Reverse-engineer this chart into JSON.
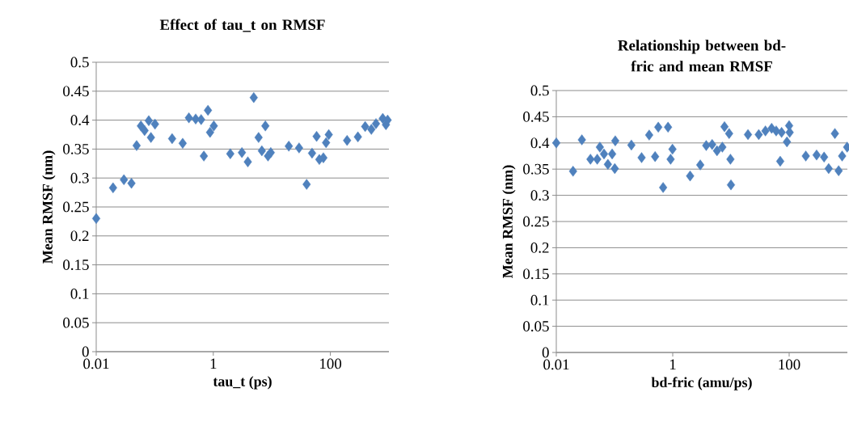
{
  "chart_data": [
    {
      "type": "scatter",
      "title": "Effect of tau_t on RMSF",
      "xlabel": "tau_t (ps)",
      "ylabel": "Mean RMSF (nm)",
      "color": "#4f81bd",
      "marker": "diamond",
      "grid": "y",
      "log": "x",
      "xlim": [
        0.01,
        1000
      ],
      "xticks": [
        0.01,
        1,
        100
      ],
      "ylim": [
        0,
        0.5
      ],
      "yticks": [
        0,
        0.05,
        0.1,
        0.15,
        0.2,
        0.25,
        0.3,
        0.35,
        0.4,
        0.45,
        0.5
      ],
      "x": [
        0.01,
        0.0194,
        0.0297,
        0.04,
        0.049,
        0.058,
        0.067,
        0.079,
        0.086,
        0.101,
        0.198,
        0.3,
        0.383,
        0.5,
        0.62,
        0.69,
        0.81,
        0.88,
        1.02,
        1.95,
        3.08,
        3.89,
        4.91,
        5.94,
        6.75,
        7.75,
        8.6,
        9.59,
        19.5,
        29.2,
        39.3,
        48.6,
        58.2,
        64.7,
        75.9,
        84.4,
        93.8,
        193,
        295,
        393,
        501,
        601,
        784,
        889,
        950
      ],
      "values": [
        0.23,
        0.283,
        0.297,
        0.291,
        0.356,
        0.39,
        0.382,
        0.399,
        0.37,
        0.393,
        0.368,
        0.36,
        0.404,
        0.402,
        0.401,
        0.338,
        0.417,
        0.379,
        0.39,
        0.342,
        0.344,
        0.328,
        0.439,
        0.37,
        0.347,
        0.39,
        0.338,
        0.344,
        0.355,
        0.352,
        0.289,
        0.343,
        0.372,
        0.332,
        0.335,
        0.361,
        0.375,
        0.365,
        0.371,
        0.389,
        0.384,
        0.394,
        0.403,
        0.392,
        0.4
      ]
    },
    {
      "type": "scatter",
      "title": "Relationship between bd-fric and mean RMSF",
      "xlabel": "bd-fric (amu/ps)",
      "ylabel": "Mean RMSF (nm)",
      "color": "#4f81bd",
      "marker": "diamond",
      "grid": "y",
      "log": "x",
      "xlim": [
        0.01,
        1000
      ],
      "xticks": [
        0.01,
        1,
        100
      ],
      "ylim": [
        0,
        0.5
      ],
      "yticks": [
        0,
        0.05,
        0.1,
        0.15,
        0.2,
        0.25,
        0.3,
        0.35,
        0.4,
        0.45,
        0.5
      ],
      "x": [
        0.01,
        0.0194,
        0.0275,
        0.0386,
        0.0505,
        0.056,
        0.066,
        0.077,
        0.091,
        0.101,
        0.103,
        0.195,
        0.292,
        0.394,
        0.498,
        0.565,
        0.684,
        0.83,
        0.92,
        0.99,
        1.99,
        2.97,
        3.76,
        4.75,
        5.76,
        7.12,
        7.75,
        9.3,
        9.8,
        10,
        19.6,
        30,
        39.1,
        50,
        59.8,
        70.2,
        74.1,
        91.6,
        99.8,
        102,
        193,
        296,
        398,
        477,
        610,
        708,
        813,
        990
      ],
      "values": [
        0.4,
        0.346,
        0.406,
        0.369,
        0.369,
        0.392,
        0.379,
        0.359,
        0.379,
        0.351,
        0.404,
        0.396,
        0.372,
        0.415,
        0.374,
        0.43,
        0.315,
        0.43,
        0.369,
        0.388,
        0.337,
        0.358,
        0.395,
        0.397,
        0.385,
        0.392,
        0.431,
        0.418,
        0.369,
        0.32,
        0.416,
        0.416,
        0.423,
        0.428,
        0.423,
        0.365,
        0.42,
        0.402,
        0.433,
        0.42,
        0.375,
        0.377,
        0.373,
        0.351,
        0.418,
        0.347,
        0.375,
        0.392
      ]
    }
  ]
}
